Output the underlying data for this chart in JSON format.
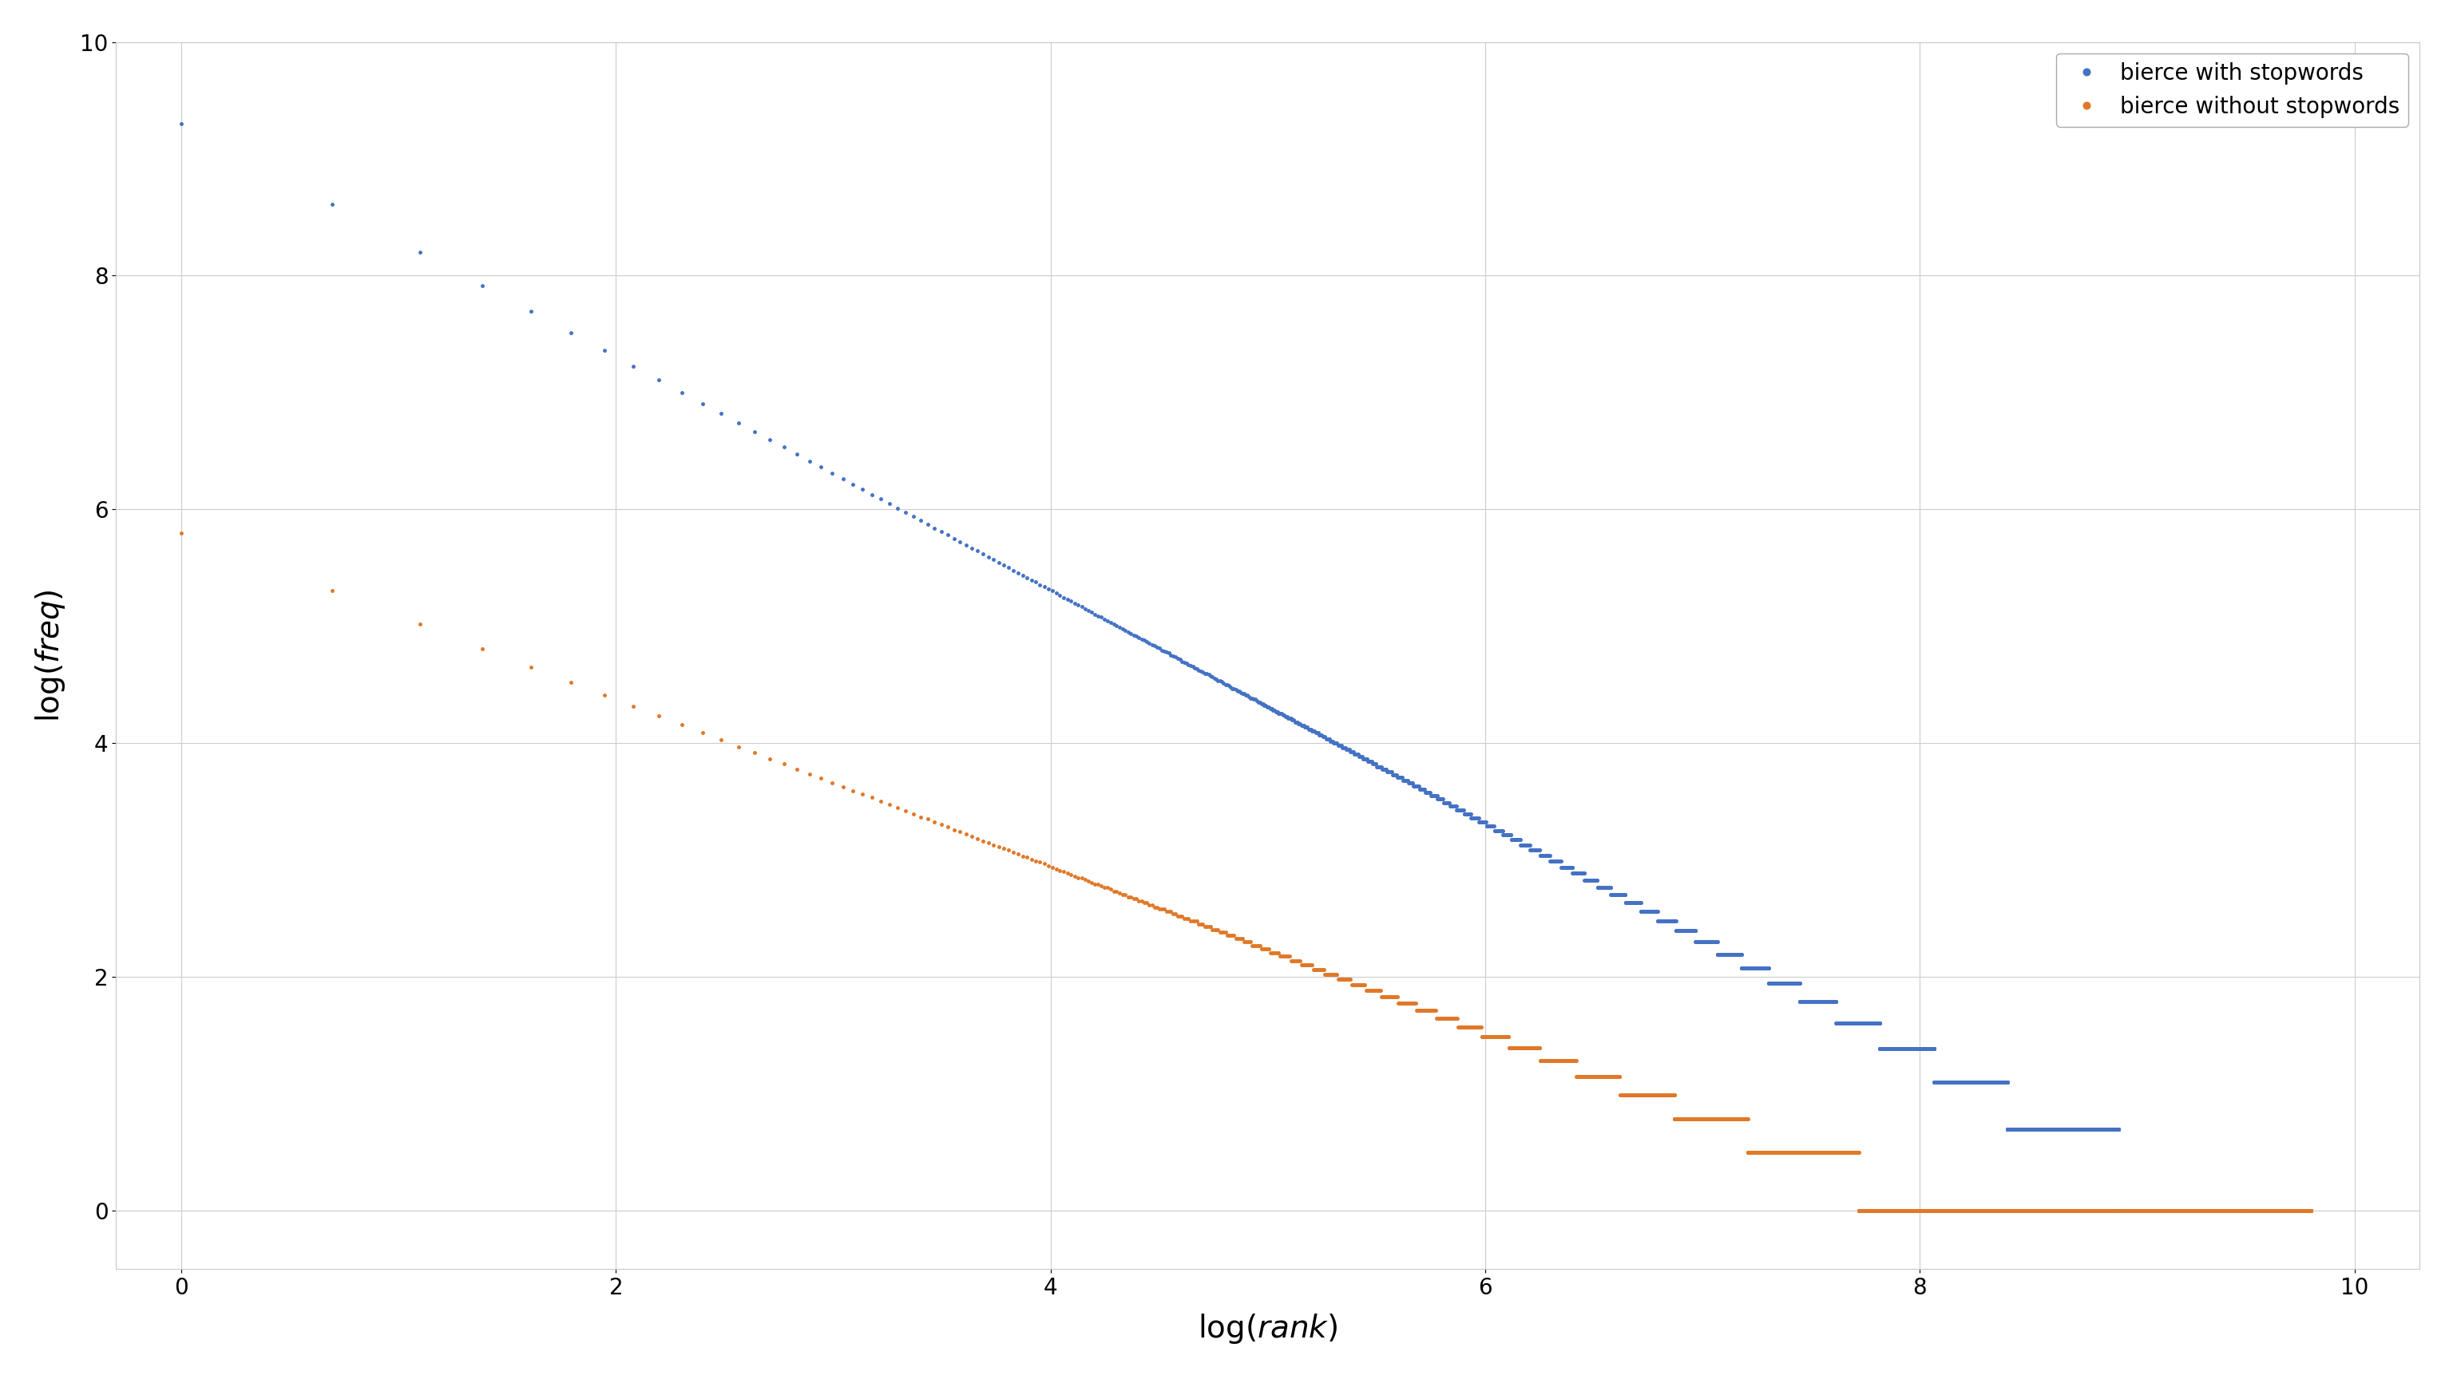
{
  "xlabel": "log(rank)",
  "ylabel": "log(freq)",
  "xlim": [
    -0.3,
    10.3
  ],
  "ylim": [
    -0.5,
    10.0
  ],
  "xticks": [
    0,
    2,
    4,
    6,
    8,
    10
  ],
  "yticks": [
    0,
    2,
    4,
    6,
    8,
    10
  ],
  "background_color": "#ffffff",
  "grid_color": "#cccccc",
  "series": [
    {
      "label": "bierce with stopwords",
      "color": "#4472c4",
      "marker": ".",
      "markersize": 5
    },
    {
      "label": "bierce without stopwords",
      "color": "#e07828",
      "marker": ".",
      "markersize": 5
    }
  ],
  "legend_loc": "upper right",
  "font_size": 20
}
